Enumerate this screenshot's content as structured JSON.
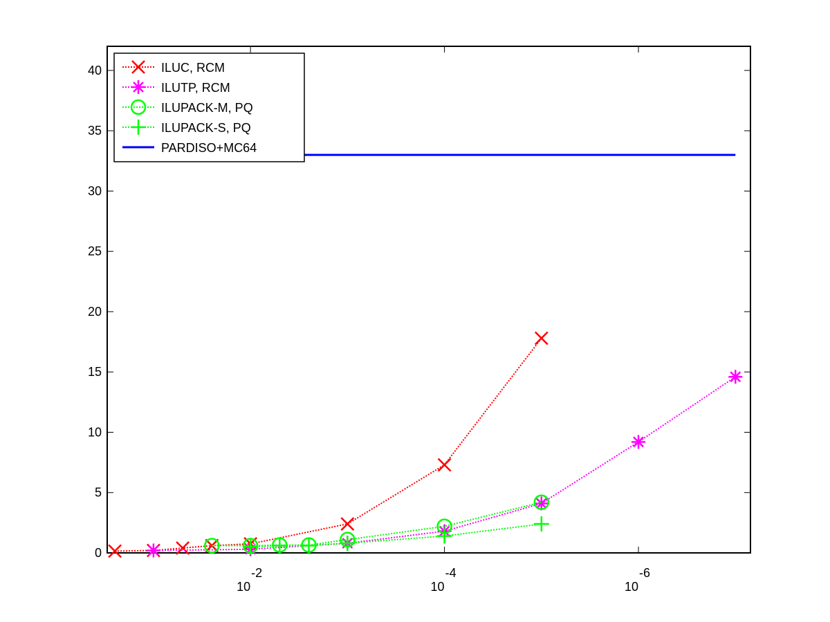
{
  "chart_data": {
    "type": "line",
    "xscale": "log",
    "xreversed": true,
    "xlim": [
      0.3,
      7e-08
    ],
    "ylim": [
      0,
      42
    ],
    "xticks": [
      {
        "value": 0.01,
        "label": "10",
        "exponent": "-2"
      },
      {
        "value": 0.0001,
        "label": "10",
        "exponent": "-4"
      },
      {
        "value": 1e-06,
        "label": "10",
        "exponent": "-6"
      }
    ],
    "yticks": [
      0,
      5,
      10,
      15,
      20,
      25,
      30,
      35,
      40
    ],
    "legend": "upper-left",
    "series": [
      {
        "name": "ILUC, RCM",
        "color": "#ff0000",
        "marker": "x",
        "line": "dotted",
        "x": [
          0.25,
          0.1,
          0.05,
          0.025,
          0.01,
          0.001,
          0.0001,
          1e-05
        ],
        "values": [
          0.15,
          0.2,
          0.4,
          0.6,
          0.75,
          2.4,
          7.3,
          17.8
        ]
      },
      {
        "name": "ILUTP, RCM",
        "color": "#ff00ff",
        "marker": "asterisk",
        "line": "dotted",
        "x": [
          0.1,
          0.01,
          0.001,
          0.0001,
          1e-05,
          1e-06,
          1e-07
        ],
        "values": [
          0.2,
          0.3,
          0.8,
          1.8,
          4.1,
          9.2,
          14.6
        ]
      },
      {
        "name": "ILUPACK-M, PQ",
        "color": "#00ff00",
        "marker": "circle",
        "line": "dotted",
        "x": [
          0.025,
          0.01,
          0.005,
          0.0025,
          0.001,
          0.0001,
          1e-05
        ],
        "values": [
          0.6,
          0.6,
          0.65,
          0.65,
          1.1,
          2.2,
          4.2
        ]
      },
      {
        "name": "ILUPACK-S, PQ",
        "color": "#00ff00",
        "marker": "plus",
        "line": "dotted",
        "x": [
          0.01,
          0.005,
          0.0025,
          0.001,
          0.0001,
          1e-05
        ],
        "values": [
          0.5,
          0.6,
          0.6,
          0.8,
          1.4,
          2.4
        ]
      },
      {
        "name": "PARDISO+MC64",
        "color": "#0000ff",
        "marker": "none",
        "line": "solid",
        "x": [
          0.25,
          1e-07
        ],
        "values": [
          33,
          33
        ]
      }
    ]
  }
}
